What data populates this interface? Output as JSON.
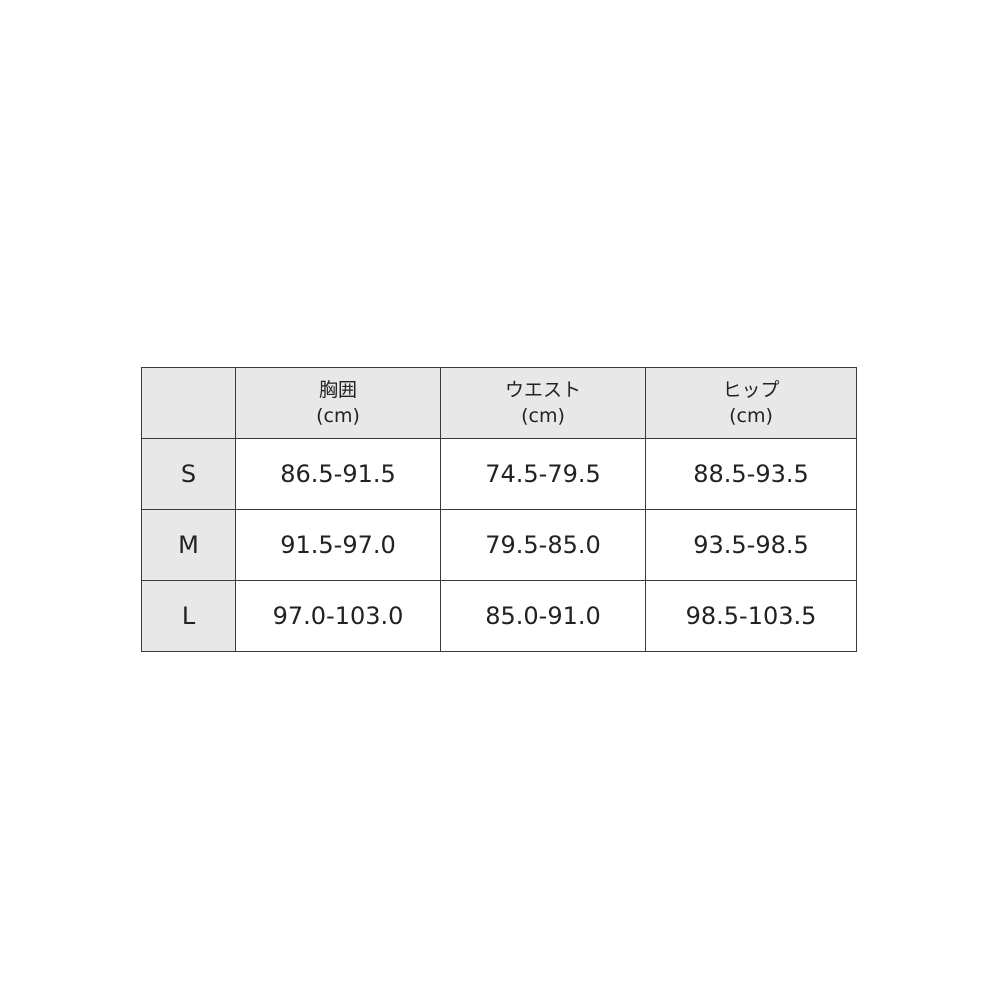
{
  "table": {
    "headers": [
      {
        "label": "胸囲",
        "unit": "(cm)"
      },
      {
        "label": "ウエスト",
        "unit": "(cm)"
      },
      {
        "label": "ヒップ",
        "unit": "(cm)"
      }
    ],
    "rows": [
      {
        "size": "S",
        "values": [
          "86.5-91.5",
          "74.5-79.5",
          "88.5-93.5"
        ]
      },
      {
        "size": "M",
        "values": [
          "91.5-97.0",
          "79.5-85.0",
          "93.5-98.5"
        ]
      },
      {
        "size": "L",
        "values": [
          "97.0-103.0",
          "85.0-91.0",
          "98.5-103.5"
        ]
      }
    ],
    "header_bg": "#e8e8e8"
  }
}
